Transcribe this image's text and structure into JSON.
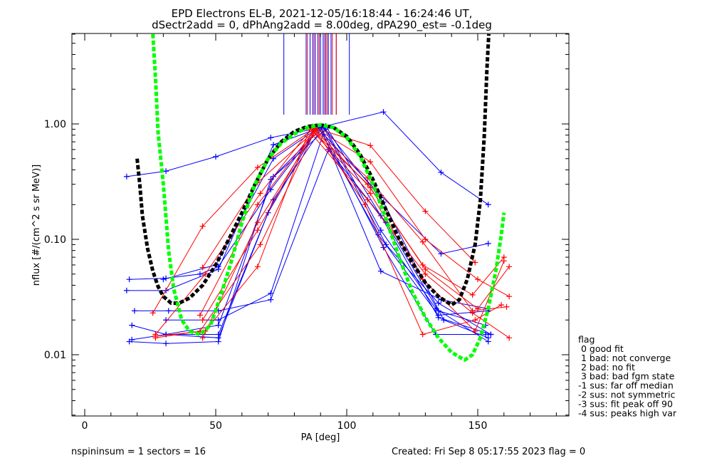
{
  "chart_data": {
    "type": "line",
    "title": "EPD Electrons EL-B, 2021-12-05/16:18:44 - 16:24:46 UT,",
    "subtitle": "dSectr2add = 0, dPhAng2add = 8.00deg, dPA290_est=  -0.1deg",
    "xlabel": "PA [deg]",
    "ylabel": "nflux [#/(cm^2 s sr MeV)]",
    "xlim": [
      -15,
      185
    ],
    "ylim": [
      0.003,
      6.0
    ],
    "yscale": "log",
    "xticks": [
      0,
      50,
      100,
      150
    ],
    "xtick_labels": [
      "0",
      "50",
      "100",
      "150"
    ],
    "yticks": [
      0.01,
      0.1,
      1.0
    ],
    "ytick_labels": [
      "0.01",
      "0.10",
      "1.00"
    ],
    "grid": false,
    "legend_position": "bottom-right outside",
    "legend_title": "flag",
    "legend_entries": [
      " 0 good fit",
      " 1 bad: not converge",
      " 2 bad: no fit",
      " 3 bad: bad fgm state",
      "-1 sus: far off median",
      "-2 sus: not symmetric",
      "-3 sus: fit peak off 90",
      "-4 sus: peaks high var"
    ],
    "vertical_markers": [
      {
        "color": "#0000ff",
        "x": [
          76,
          84.5,
          86,
          87,
          88,
          89,
          90,
          91,
          92,
          93,
          94,
          96,
          101
        ]
      },
      {
        "color": "#ff0000",
        "x": [
          85,
          87.5,
          89.5,
          91.5,
          92.5,
          94.5,
          96
        ]
      }
    ],
    "series": [
      {
        "color": "#0000ff",
        "points": [
          [
            16,
            0.35
          ],
          [
            31,
            0.39
          ],
          [
            50,
            0.52
          ],
          [
            71,
            0.76
          ],
          [
            87,
            0.9
          ],
          [
            114,
            1.27
          ],
          [
            136,
            0.38
          ],
          [
            154,
            0.2
          ]
        ]
      },
      {
        "color": "#0000ff",
        "points": [
          [
            17,
            0.045
          ],
          [
            31,
            0.046
          ],
          [
            44,
            0.05
          ],
          [
            51,
            0.058
          ],
          [
            71,
            0.27
          ],
          [
            89,
            0.92
          ],
          [
            113,
            0.24
          ],
          [
            136,
            0.075
          ],
          [
            154,
            0.092
          ]
        ]
      },
      {
        "color": "#0000ff",
        "points": [
          [
            16,
            0.036
          ],
          [
            31,
            0.036
          ],
          [
            51,
            0.055
          ],
          [
            72,
            0.66
          ],
          [
            90,
            0.93
          ],
          [
            113,
            0.053
          ],
          [
            136,
            0.03
          ],
          [
            154,
            0.025
          ]
        ]
      },
      {
        "color": "#0000ff",
        "points": [
          [
            19,
            0.024
          ],
          [
            32,
            0.024
          ],
          [
            51,
            0.024
          ],
          [
            71,
            0.03
          ],
          [
            93,
            0.6
          ],
          [
            115,
            0.14
          ],
          [
            135,
            0.024
          ],
          [
            153,
            0.018
          ]
        ]
      },
      {
        "color": "#0000ff",
        "points": [
          [
            31,
            0.02
          ],
          [
            51,
            0.02
          ],
          [
            71,
            0.034
          ],
          [
            92,
            0.96
          ],
          [
            113,
            0.16
          ],
          [
            135,
            0.021
          ],
          [
            155,
            0.015
          ]
        ]
      },
      {
        "color": "#0000ff",
        "points": [
          [
            18,
            0.018
          ],
          [
            31,
            0.015
          ],
          [
            51,
            0.018
          ],
          [
            72,
            0.35
          ],
          [
            91,
            0.95
          ],
          [
            114,
            0.21
          ],
          [
            137,
            0.02
          ],
          [
            154,
            0.014
          ]
        ]
      },
      {
        "color": "#0000ff",
        "points": [
          [
            17,
            0.013
          ],
          [
            31,
            0.0125
          ],
          [
            51,
            0.013
          ],
          [
            71,
            0.33
          ],
          [
            92,
            0.9
          ],
          [
            113,
            0.12
          ],
          [
            134,
            0.025
          ],
          [
            154,
            0.013
          ]
        ]
      },
      {
        "color": "#0000ff",
        "points": [
          [
            18,
            0.0135
          ],
          [
            31,
            0.015
          ],
          [
            51,
            0.015
          ],
          [
            72,
            0.22
          ],
          [
            91,
            0.95
          ],
          [
            115,
            0.09
          ],
          [
            135,
            0.028
          ],
          [
            155,
            0.015
          ]
        ]
      },
      {
        "color": "#0000ff",
        "points": [
          [
            31,
            0.015
          ],
          [
            51,
            0.014
          ],
          [
            70,
            0.17
          ],
          [
            89,
            0.95
          ],
          [
            112,
            0.11
          ],
          [
            135,
            0.022
          ],
          [
            154,
            0.024
          ]
        ]
      },
      {
        "color": "#0000ff",
        "points": [
          [
            30,
            0.045
          ],
          [
            50,
            0.06
          ],
          [
            72,
            0.5
          ],
          [
            90,
            0.95
          ],
          [
            114,
            0.085
          ],
          [
            134,
            0.015
          ],
          [
            153,
            0.015
          ]
        ]
      },
      {
        "color": "#ff0000",
        "points": [
          [
            26,
            0.023
          ],
          [
            45,
            0.13
          ],
          [
            66,
            0.42
          ],
          [
            88,
            0.92
          ],
          [
            109,
            0.65
          ],
          [
            130,
            0.175
          ],
          [
            149,
            0.063
          ]
        ]
      },
      {
        "color": "#ff0000",
        "points": [
          [
            27,
            0.015
          ],
          [
            46,
            0.05
          ],
          [
            67,
            0.25
          ],
          [
            87,
            0.95
          ],
          [
            109,
            0.47
          ],
          [
            130,
            0.1
          ],
          [
            150,
            0.045
          ],
          [
            162,
            0.032
          ]
        ]
      },
      {
        "color": "#ff0000",
        "points": [
          [
            27,
            0.0145
          ],
          [
            46,
            0.016
          ],
          [
            66,
            0.058
          ],
          [
            86,
            0.92
          ],
          [
            108,
            0.3
          ],
          [
            129,
            0.06
          ],
          [
            148,
            0.033
          ],
          [
            160,
            0.07
          ]
        ]
      },
      {
        "color": "#ff0000",
        "points": [
          [
            27,
            0.014
          ],
          [
            44,
            0.016
          ],
          [
            67,
            0.09
          ],
          [
            88,
            0.88
          ],
          [
            107,
            0.2
          ],
          [
            129,
            0.015
          ],
          [
            149,
            0.02
          ],
          [
            159,
            0.027
          ]
        ]
      },
      {
        "color": "#ff0000",
        "points": [
          [
            45,
            0.014
          ],
          [
            66,
            0.14
          ],
          [
            87,
            0.8
          ],
          [
            108,
            0.22
          ],
          [
            130,
            0.05
          ],
          [
            148,
            0.023
          ],
          [
            162,
            0.014
          ]
        ]
      },
      {
        "color": "#ff0000",
        "points": [
          [
            45,
            0.057
          ],
          [
            66,
            0.31
          ],
          [
            88,
            0.88
          ],
          [
            109,
            0.28
          ],
          [
            130,
            0.055
          ],
          [
            150,
            0.025
          ],
          [
            162,
            0.058
          ]
        ]
      },
      {
        "color": "#ff0000",
        "points": [
          [
            44,
            0.022
          ],
          [
            66,
            0.2
          ],
          [
            88,
            0.9
          ],
          [
            108,
            0.34
          ],
          [
            129,
            0.095
          ],
          [
            148,
            0.024
          ],
          [
            161,
            0.026
          ]
        ]
      },
      {
        "color": "#ff0000",
        "points": [
          [
            45,
            0.02
          ],
          [
            66,
            0.12
          ],
          [
            87,
            0.86
          ],
          [
            109,
            0.25
          ],
          [
            129,
            0.045
          ],
          [
            149,
            0.016
          ],
          [
            160,
            0.065
          ]
        ]
      }
    ],
    "fit_curves": [
      {
        "color": "#000000",
        "points": [
          [
            20,
            0.5
          ],
          [
            21,
            0.3
          ],
          [
            22,
            0.16
          ],
          [
            24,
            0.083
          ],
          [
            26,
            0.053
          ],
          [
            28,
            0.039
          ],
          [
            30,
            0.032
          ],
          [
            33,
            0.028
          ],
          [
            36,
            0.028
          ],
          [
            40,
            0.031
          ],
          [
            45,
            0.04
          ],
          [
            50,
            0.06
          ],
          [
            55,
            0.1
          ],
          [
            60,
            0.17
          ],
          [
            65,
            0.3
          ],
          [
            70,
            0.5
          ],
          [
            75,
            0.7
          ],
          [
            80,
            0.86
          ],
          [
            85,
            0.95
          ],
          [
            90,
            0.98
          ],
          [
            95,
            0.93
          ],
          [
            100,
            0.78
          ],
          [
            105,
            0.55
          ],
          [
            110,
            0.33
          ],
          [
            115,
            0.18
          ],
          [
            120,
            0.1
          ],
          [
            125,
            0.063
          ],
          [
            130,
            0.042
          ],
          [
            135,
            0.032
          ],
          [
            140,
            0.027
          ],
          [
            143,
            0.03
          ],
          [
            146,
            0.045
          ],
          [
            149,
            0.09
          ],
          [
            151,
            0.22
          ],
          [
            152.5,
            0.8
          ],
          [
            153.5,
            3.0
          ],
          [
            154.2,
            6.0
          ]
        ]
      },
      {
        "color": "#00ff00",
        "points": [
          [
            26,
            6.0
          ],
          [
            27,
            2.5
          ],
          [
            28,
            0.85
          ],
          [
            30,
            0.3
          ],
          [
            32,
            0.08
          ],
          [
            34,
            0.037
          ],
          [
            37,
            0.02
          ],
          [
            40,
            0.016
          ],
          [
            44,
            0.015
          ],
          [
            48,
            0.018
          ],
          [
            52,
            0.033
          ],
          [
            56,
            0.065
          ],
          [
            60,
            0.14
          ],
          [
            65,
            0.3
          ],
          [
            70,
            0.5
          ],
          [
            75,
            0.68
          ],
          [
            80,
            0.82
          ],
          [
            85,
            0.93
          ],
          [
            90,
            0.98
          ],
          [
            95,
            0.93
          ],
          [
            100,
            0.76
          ],
          [
            105,
            0.53
          ],
          [
            110,
            0.3
          ],
          [
            115,
            0.15
          ],
          [
            120,
            0.07
          ],
          [
            125,
            0.035
          ],
          [
            130,
            0.021
          ],
          [
            135,
            0.014
          ],
          [
            140,
            0.0105
          ],
          [
            145,
            0.009
          ],
          [
            148,
            0.01
          ],
          [
            151,
            0.014
          ],
          [
            154,
            0.025
          ],
          [
            157,
            0.055
          ],
          [
            159,
            0.11
          ],
          [
            160,
            0.17
          ]
        ]
      }
    ]
  },
  "footer": {
    "left": "nspininsum =  1  sectors = 16",
    "right": "Created: Fri Sep  8 05:17:55 2023   flag = 0"
  }
}
